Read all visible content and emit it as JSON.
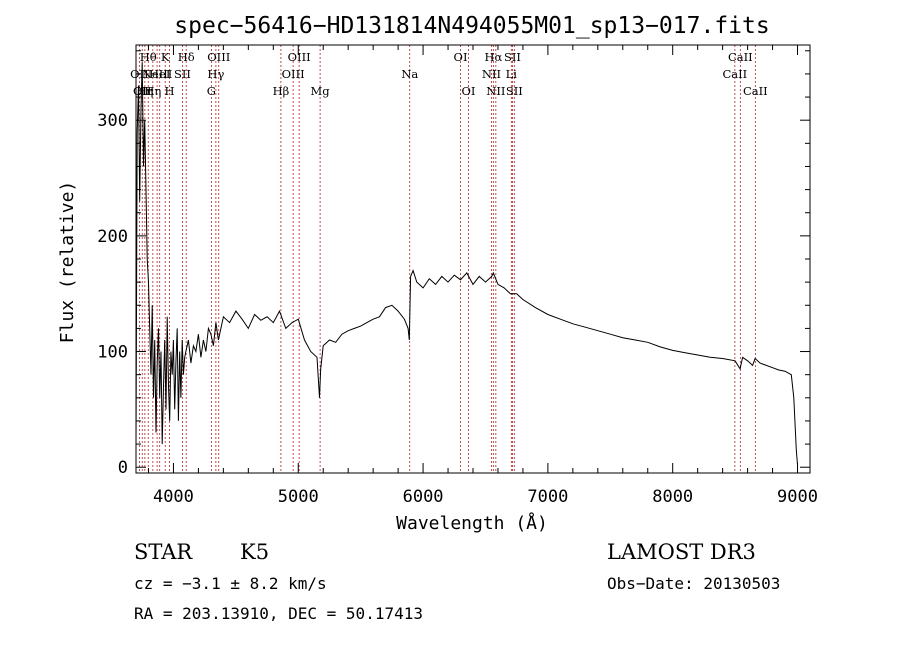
{
  "title": "spec−56416−HD131814N494055M01_sp13−017.fits",
  "info": {
    "class_label": "STAR",
    "subclass_label": "K5",
    "cz": "cz = −3.1 ± 8.2 km/s",
    "radec": "RA = 203.13910, DEC =  50.17413",
    "survey": "LAMOST DR3",
    "obs_date": "Obs−Date: 20130503"
  },
  "chart_data": {
    "type": "line",
    "title": "spec−56416−HD131814N494055M01_sp13−017.fits",
    "xlabel": "Wavelength (Å)",
    "ylabel": "Flux (relative)",
    "xlim": [
      3700,
      9100
    ],
    "ylim": [
      -5,
      365
    ],
    "x_ticks": [
      4000,
      5000,
      6000,
      7000,
      8000,
      9000
    ],
    "x_tick_labels": [
      "4000",
      "5000",
      "6000",
      "7000",
      "8000",
      "9000"
    ],
    "y_ticks": [
      0,
      100,
      200,
      300
    ],
    "y_tick_labels": [
      "0",
      "100",
      "200",
      "300"
    ],
    "grid": false,
    "colors": {
      "spectrum": "#000000",
      "line_markers": "#b22222"
    },
    "series": [
      {
        "x": [
          3700,
          3710,
          3720,
          3730,
          3740,
          3750,
          3760,
          3770,
          3780,
          3790,
          3800,
          3810,
          3820,
          3830,
          3840,
          3850,
          3860,
          3870,
          3880,
          3890,
          3900,
          3910,
          3920,
          3930,
          3940,
          3950,
          3960,
          3970,
          3980,
          3990,
          4000,
          4010,
          4020,
          4030,
          4040,
          4050,
          4060,
          4070,
          4080,
          4090,
          4100,
          4120,
          4140,
          4160,
          4180,
          4200,
          4220,
          4240,
          4260,
          4280,
          4300,
          4320,
          4340,
          4360,
          4380,
          4400,
          4450,
          4500,
          4550,
          4600,
          4650,
          4700,
          4750,
          4800,
          4850,
          4900,
          4950,
          5000,
          5050,
          5100,
          5150,
          5170,
          5180,
          5200,
          5250,
          5300,
          5350,
          5400,
          5450,
          5500,
          5550,
          5600,
          5650,
          5700,
          5750,
          5800,
          5850,
          5880,
          5890,
          5900,
          5920,
          5950,
          6000,
          6050,
          6100,
          6150,
          6200,
          6250,
          6300,
          6350,
          6400,
          6450,
          6500,
          6550,
          6563,
          6600,
          6650,
          6700,
          6750,
          6800,
          6900,
          7000,
          7100,
          7200,
          7300,
          7400,
          7500,
          7600,
          7700,
          7800,
          7900,
          8000,
          8100,
          8200,
          8300,
          8400,
          8500,
          8540,
          8560,
          8600,
          8640,
          8660,
          8700,
          8750,
          8800,
          8850,
          8900,
          8950,
          8970,
          8990,
          9000
        ],
        "y": [
          20,
          290,
          330,
          230,
          310,
          350,
          260,
          300,
          240,
          180,
          160,
          120,
          80,
          140,
          60,
          110,
          30,
          90,
          120,
          60,
          100,
          20,
          70,
          110,
          50,
          130,
          70,
          40,
          100,
          80,
          110,
          50,
          90,
          120,
          40,
          100,
          60,
          110,
          80,
          95,
          100,
          110,
          90,
          105,
          100,
          115,
          95,
          110,
          100,
          120,
          115,
          105,
          125,
          110,
          120,
          130,
          125,
          135,
          128,
          120,
          132,
          127,
          130,
          125,
          135,
          120,
          125,
          128,
          110,
          100,
          95,
          60,
          85,
          105,
          110,
          108,
          115,
          118,
          120,
          122,
          125,
          128,
          130,
          138,
          140,
          135,
          128,
          120,
          110,
          165,
          170,
          160,
          155,
          163,
          158,
          165,
          160,
          166,
          162,
          168,
          158,
          165,
          160,
          165,
          168,
          158,
          155,
          150,
          150,
          145,
          138,
          132,
          128,
          124,
          121,
          118,
          115,
          112,
          110,
          108,
          104,
          101,
          99,
          97,
          95,
          94,
          92,
          85,
          95,
          92,
          88,
          94,
          90,
          88,
          86,
          84,
          83,
          80,
          60,
          15,
          2
        ]
      }
    ],
    "line_markers": [
      {
        "x": 3727,
        "label": "OII",
        "row": 2
      },
      {
        "x": 3750,
        "label": "OII",
        "row": 3
      },
      {
        "x": 3771,
        "label": "Hη",
        "row": 3
      },
      {
        "x": 3798,
        "label": "Hθ",
        "row": 1
      },
      {
        "x": 3835,
        "label": "Hη",
        "row": 3
      },
      {
        "x": 3869,
        "label": "NeIII",
        "row": 2
      },
      {
        "x": 3890,
        "label": "HeI",
        "row": 2
      },
      {
        "x": 3934,
        "label": "K",
        "row": 1
      },
      {
        "x": 3969,
        "label": "H",
        "row": 3
      },
      {
        "x": 4072,
        "label": "SII",
        "row": 2
      },
      {
        "x": 4102,
        "label": "Hδ",
        "row": 1
      },
      {
        "x": 4304,
        "label": "G",
        "row": 3
      },
      {
        "x": 4340,
        "label": "Hγ",
        "row": 2
      },
      {
        "x": 4363,
        "label": "OIII",
        "row": 1
      },
      {
        "x": 4861,
        "label": "Hβ",
        "row": 3
      },
      {
        "x": 4959,
        "label": "OIII",
        "row": 2
      },
      {
        "x": 5007,
        "label": "OIII",
        "row": 1
      },
      {
        "x": 5175,
        "label": "Mg",
        "row": 3
      },
      {
        "x": 5893,
        "label": "Na",
        "row": 2
      },
      {
        "x": 6300,
        "label": "OI",
        "row": 1
      },
      {
        "x": 6364,
        "label": "OI",
        "row": 3
      },
      {
        "x": 6548,
        "label": "NII",
        "row": 2
      },
      {
        "x": 6563,
        "label": "Hα",
        "row": 1
      },
      {
        "x": 6583,
        "label": "NII",
        "row": 3
      },
      {
        "x": 6707,
        "label": "Li",
        "row": 2
      },
      {
        "x": 6716,
        "label": "SII",
        "row": 1
      },
      {
        "x": 6731,
        "label": "SII",
        "row": 3
      },
      {
        "x": 8498,
        "label": "CaII",
        "row": 2
      },
      {
        "x": 8542,
        "label": "CaII",
        "row": 1
      },
      {
        "x": 8662,
        "label": "CaII",
        "row": 3
      }
    ]
  }
}
